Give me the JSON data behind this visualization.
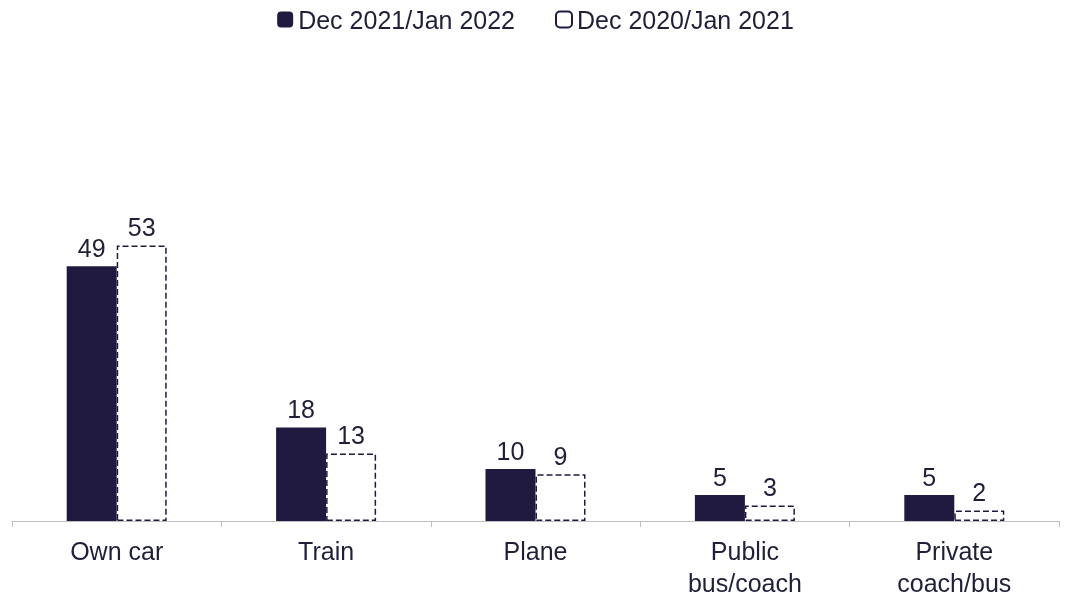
{
  "chart_data": {
    "type": "bar",
    "categories": [
      "Own car",
      "Train",
      "Plane",
      "Public\nbus/coach",
      "Private\ncoach/bus"
    ],
    "series": [
      {
        "name": "Dec 2021/Jan 2022",
        "color": "#211a40",
        "values": [
          49,
          18,
          10,
          5,
          5
        ]
      },
      {
        "name": "Dec 2020/Jan 2021",
        "color": "#ffffff",
        "line_style": "dashed",
        "values": [
          53,
          13,
          9,
          3,
          2
        ]
      }
    ],
    "data_labels": true,
    "legend": "top",
    "grid": false
  }
}
